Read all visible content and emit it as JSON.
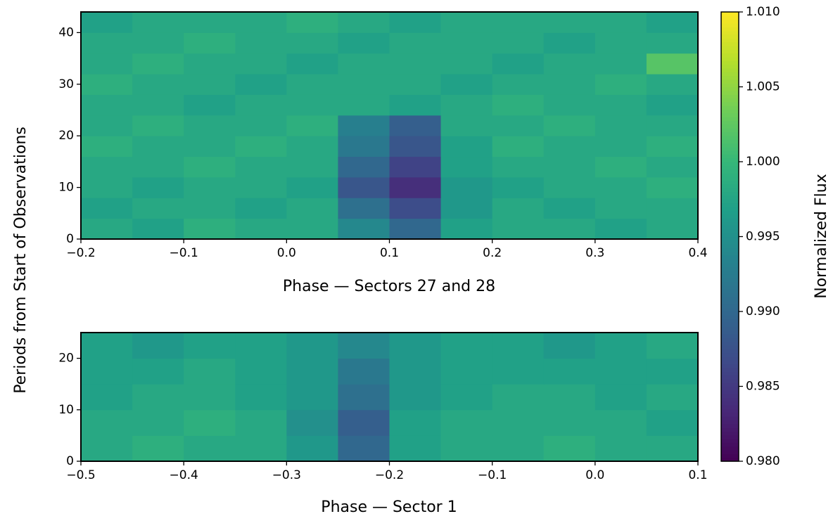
{
  "chart_data": [
    {
      "type": "heatmap",
      "ylabel": "Periods from Start of Observations",
      "xlabel": "Phase — Sectors 27 and 28",
      "colormap": "viridis",
      "x": [
        -0.2,
        -0.15,
        -0.1,
        -0.05,
        0,
        0.05,
        0.1,
        0.15,
        0.2,
        0.25,
        0.3,
        0.35,
        0.4
      ],
      "y": [
        0,
        4,
        8,
        12,
        16,
        20,
        24,
        28,
        32,
        36,
        40,
        44
      ],
      "values": [
        [
          0.998,
          0.997,
          0.999,
          0.998,
          0.998,
          0.994,
          0.99,
          0.997,
          0.998,
          0.998,
          0.997,
          0.998
        ],
        [
          0.997,
          0.998,
          0.998,
          0.997,
          0.998,
          0.991,
          0.987,
          0.996,
          0.998,
          0.997,
          0.998,
          0.998
        ],
        [
          0.998,
          0.997,
          0.998,
          0.998,
          0.997,
          0.988,
          0.984,
          0.996,
          0.997,
          0.998,
          0.998,
          0.999
        ],
        [
          0.998,
          0.998,
          0.999,
          0.998,
          0.998,
          0.99,
          0.986,
          0.997,
          0.998,
          0.998,
          0.999,
          0.998
        ],
        [
          0.999,
          0.998,
          0.998,
          0.999,
          0.998,
          0.992,
          0.988,
          0.997,
          0.999,
          0.998,
          0.998,
          0.999
        ],
        [
          0.998,
          0.999,
          0.998,
          0.998,
          0.999,
          0.993,
          0.989,
          0.998,
          0.998,
          0.999,
          0.998,
          0.998
        ],
        [
          0.998,
          0.998,
          0.997,
          0.998,
          0.998,
          0.998,
          0.997,
          0.998,
          0.999,
          0.998,
          0.998,
          0.997
        ],
        [
          0.999,
          0.998,
          0.998,
          0.997,
          0.998,
          0.998,
          0.998,
          0.997,
          0.998,
          0.998,
          0.999,
          0.998
        ],
        [
          0.998,
          0.999,
          0.998,
          0.998,
          0.997,
          0.998,
          0.998,
          0.998,
          0.997,
          0.998,
          0.998,
          1.002
        ],
        [
          0.998,
          0.998,
          0.999,
          0.998,
          0.998,
          0.997,
          0.998,
          0.998,
          0.998,
          0.997,
          0.998,
          0.998
        ],
        [
          0.997,
          0.998,
          0.998,
          0.998,
          0.999,
          0.998,
          0.997,
          0.998,
          0.998,
          0.998,
          0.998,
          0.997
        ]
      ],
      "xlim": [
        -0.2,
        0.4
      ],
      "ylim": [
        0,
        44
      ],
      "xticks": [
        {
          "value": -0.2,
          "label": "−0.2"
        },
        {
          "value": -0.1,
          "label": "−0.1"
        },
        {
          "value": 0,
          "label": "0.0"
        },
        0.1,
        0.2,
        0.3,
        0.4
      ],
      "yticks": [
        0,
        10,
        20,
        30,
        40
      ]
    },
    {
      "type": "heatmap",
      "xlabel": "Phase — Sector 1",
      "colormap": "viridis",
      "x": [
        -0.5,
        -0.45,
        -0.4,
        -0.35,
        -0.3,
        -0.25,
        -0.2,
        -0.15,
        -0.1,
        -0.05,
        0,
        0.05,
        0.1
      ],
      "y": [
        0,
        5,
        10,
        15,
        20,
        25
      ],
      "values": [
        [
          0.998,
          0.999,
          0.998,
          0.998,
          0.996,
          0.99,
          0.997,
          0.998,
          0.998,
          0.999,
          0.998,
          0.998
        ],
        [
          0.998,
          0.998,
          0.999,
          0.998,
          0.995,
          0.989,
          0.997,
          0.998,
          0.998,
          0.998,
          0.998,
          0.997
        ],
        [
          0.997,
          0.998,
          0.998,
          0.997,
          0.996,
          0.991,
          0.996,
          0.997,
          0.998,
          0.998,
          0.997,
          0.998
        ],
        [
          0.997,
          0.997,
          0.998,
          0.997,
          0.996,
          0.992,
          0.996,
          0.997,
          0.997,
          0.997,
          0.997,
          0.997
        ],
        [
          0.997,
          0.996,
          0.997,
          0.997,
          0.996,
          0.994,
          0.996,
          0.997,
          0.997,
          0.996,
          0.997,
          0.998
        ]
      ],
      "xlim": [
        -0.5,
        0.1
      ],
      "ylim": [
        0,
        25
      ],
      "xticks": [
        {
          "value": -0.5,
          "label": "−0.5"
        },
        {
          "value": -0.4,
          "label": "−0.4"
        },
        {
          "value": -0.3,
          "label": "−0.3"
        },
        {
          "value": -0.2,
          "label": "−0.2"
        },
        {
          "value": -0.1,
          "label": "−0.1"
        },
        {
          "value": 0,
          "label": "0.0"
        },
        0.1
      ],
      "yticks": [
        0,
        10,
        20
      ]
    },
    {
      "type": "colorbar",
      "label": "Normalized Flux",
      "colormap": "viridis",
      "clim": [
        0.98,
        1.01
      ],
      "ticks": [
        {
          "value": 0.98,
          "label": "0.980"
        },
        0.985,
        {
          "value": 0.99,
          "label": "0.990"
        },
        0.995,
        {
          "value": 1,
          "label": "1.000"
        },
        1.005,
        {
          "value": 1.01,
          "label": "1.010"
        }
      ]
    }
  ]
}
